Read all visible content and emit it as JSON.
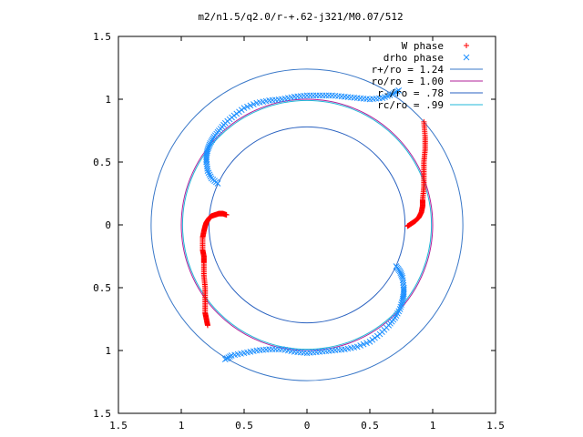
{
  "chart_data": {
    "type": "scatter",
    "title": "m2/n1.5/q2.0/r-+.62-j321/M0.07/512",
    "xlabel": "",
    "ylabel": "",
    "xlim": [
      -1.5,
      1.5
    ],
    "ylim": [
      -1.5,
      1.5
    ],
    "x_ticks": [
      -1.5,
      -1,
      -0.5,
      0,
      0.5,
      1,
      1.5
    ],
    "y_ticks": [
      -1.5,
      -1,
      -0.5,
      0,
      0.5,
      1,
      1.5
    ],
    "x_tick_labels": [
      "1.5",
      "1",
      "0.5",
      "0",
      "0.5",
      "1",
      "1.5"
    ],
    "y_tick_labels": [
      "1.5",
      "1",
      "0.5",
      "0",
      "0.5",
      "1",
      "1.5"
    ],
    "grid": false,
    "legend_position": "top-right",
    "legend": [
      {
        "label": "W phase",
        "marker": "+",
        "color": "#ff0000"
      },
      {
        "label": "drho phase",
        "marker": "x",
        "color": "#1e90ff"
      },
      {
        "label": "r+/ro = 1.24",
        "marker": "line",
        "color": "#3a78c8"
      },
      {
        "label": "ro/ro = 1.00",
        "marker": "line",
        "color": "#b0209a"
      },
      {
        "label": "r-/ro = .78",
        "marker": "line",
        "color": "#2a62c0"
      },
      {
        "label": "rc/ro = .99",
        "marker": "line",
        "color": "#20b8d8"
      }
    ],
    "circles": [
      {
        "name": "r+/ro = 1.24",
        "radius": 1.24,
        "color": "#3a78c8"
      },
      {
        "name": "ro/ro = 1.00",
        "radius": 1.0,
        "color": "#b0209a"
      },
      {
        "name": "r-/ro = .78",
        "radius": 0.78,
        "color": "#2a62c0"
      },
      {
        "name": "rc/ro = .99",
        "radius": 0.99,
        "color": "#20b8d8"
      }
    ],
    "series": [
      {
        "name": "W phase",
        "marker": "+",
        "color": "#ff0000",
        "curves": [
          {
            "x": [
              0.93,
              0.94,
              0.94,
              0.93,
              0.93,
              0.93,
              0.92,
              0.92,
              0.91,
              0.89,
              0.86,
              0.83,
              0.8
            ],
            "y": [
              0.82,
              0.7,
              0.6,
              0.5,
              0.4,
              0.3,
              0.2,
              0.15,
              0.1,
              0.06,
              0.03,
              0.01,
              -0.01
            ]
          },
          {
            "x": [
              -0.79,
              -0.8,
              -0.81,
              -0.81,
              -0.81,
              -0.82,
              -0.82,
              -0.82,
              -0.83,
              -0.83,
              -0.82,
              -0.81,
              -0.8,
              -0.78,
              -0.76,
              -0.73,
              -0.7,
              -0.67,
              -0.64
            ],
            "y": [
              -0.8,
              -0.75,
              -0.7,
              -0.6,
              -0.5,
              -0.4,
              -0.3,
              -0.25,
              -0.2,
              -0.1,
              -0.05,
              -0.01,
              0.02,
              0.05,
              0.07,
              0.08,
              0.09,
              0.09,
              0.08
            ]
          }
        ]
      },
      {
        "name": "drho phase",
        "marker": "x",
        "color": "#1e90ff",
        "curves": [
          {
            "x": [
              -0.71,
              -0.76,
              -0.79,
              -0.8,
              -0.8,
              -0.79,
              -0.77,
              -0.74,
              -0.7,
              -0.65,
              -0.58,
              -0.5,
              -0.4,
              -0.3,
              -0.2,
              -0.1,
              0.0,
              0.1,
              0.2,
              0.3,
              0.4,
              0.5,
              0.6,
              0.68,
              0.73
            ],
            "y": [
              0.33,
              0.37,
              0.43,
              0.5,
              0.55,
              0.6,
              0.65,
              0.7,
              0.75,
              0.81,
              0.87,
              0.93,
              0.97,
              0.99,
              1.0,
              1.02,
              1.03,
              1.03,
              1.03,
              1.02,
              1.01,
              1.0,
              1.01,
              1.04,
              1.07
            ]
          },
          {
            "x": [
              0.71,
              0.74,
              0.76,
              0.77,
              0.77,
              0.76,
              0.74,
              0.7,
              0.65,
              0.58,
              0.5,
              0.4,
              0.3,
              0.2,
              0.1,
              0.0,
              -0.1,
              -0.2,
              -0.3,
              -0.4,
              -0.5,
              -0.6,
              -0.65
            ],
            "y": [
              -0.33,
              -0.37,
              -0.42,
              -0.5,
              -0.55,
              -0.6,
              -0.67,
              -0.74,
              -0.8,
              -0.87,
              -0.93,
              -0.97,
              -0.99,
              -1.0,
              -1.01,
              -1.02,
              -1.01,
              -0.99,
              -0.99,
              -1.0,
              -1.02,
              -1.04,
              -1.07
            ]
          }
        ]
      }
    ]
  }
}
